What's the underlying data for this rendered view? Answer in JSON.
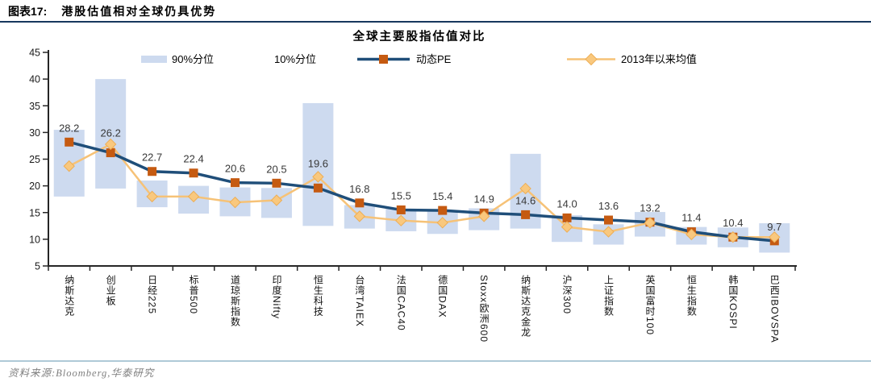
{
  "header": {
    "figure_label": "图表17:",
    "title": "港股估值相对全球仍具优势"
  },
  "source": {
    "line": "资料来源:Bloomberg,华泰研究"
  },
  "chart_data": {
    "type": "bar",
    "subtype": "floating percentile-range bars combined with two marker lines",
    "title": "全球主要股指估值对比",
    "categories": [
      "纳斯达克",
      "创业板",
      "日经225",
      "标普500",
      "道琼斯指数",
      "印度Nifty",
      "恒生科技",
      "台湾TAIEX",
      "法国CAC40",
      "德国DAX",
      "Stoxx欧洲600",
      "纳斯达克金龙",
      "沪深300",
      "上证指数",
      "英国富时100",
      "恒生指数",
      "韩国KOSPI",
      "巴西IBOVSPA"
    ],
    "series": [
      {
        "name": "90%分位",
        "kind": "range-top",
        "values": [
          30.5,
          40.0,
          21.0,
          20.0,
          19.7,
          19.6,
          35.5,
          16.4,
          15.7,
          15.3,
          15.8,
          26.0,
          14.5,
          12.8,
          15.1,
          12.3,
          12.2,
          13.0
        ]
      },
      {
        "name": "10%分位",
        "kind": "range-bottom",
        "values": [
          18.0,
          19.5,
          16.0,
          14.8,
          14.3,
          14.0,
          12.5,
          12.0,
          11.5,
          11.0,
          11.7,
          12.0,
          9.5,
          9.0,
          10.5,
          9.0,
          8.5,
          7.5
        ]
      },
      {
        "name": "动态PE",
        "kind": "line-square",
        "values": [
          28.2,
          26.2,
          22.7,
          22.4,
          20.6,
          20.5,
          19.6,
          16.8,
          15.5,
          15.4,
          14.9,
          14.6,
          14.0,
          13.6,
          13.2,
          11.4,
          10.4,
          9.7
        ],
        "value_labels": [
          "28.2",
          "26.2",
          "22.7",
          "22.4",
          "20.6",
          "20.5",
          "19.6",
          "16.8",
          "15.5",
          "15.4",
          "14.9",
          "14.6",
          "14.0",
          "13.6",
          "13.2",
          "11.4",
          "10.4",
          "9.7"
        ]
      },
      {
        "name": "2013年以来均值",
        "kind": "line-diamond",
        "values": [
          23.7,
          27.8,
          18.0,
          18.0,
          16.9,
          17.3,
          21.7,
          14.3,
          13.5,
          13.1,
          14.3,
          19.5,
          12.3,
          11.4,
          13.1,
          10.9,
          10.4,
          10.4
        ]
      }
    ],
    "ylim": [
      5,
      45
    ],
    "ytick_step": 5,
    "ytick_labels": [
      "45",
      "40",
      "35",
      "30",
      "25",
      "20",
      "15",
      "10",
      "5"
    ],
    "grid": false,
    "legend_position": "top",
    "colors": {
      "band": "#CDDAEF",
      "pe_line": "#1F4E79",
      "pe_marker": "#C55A11",
      "mean_line": "#F6C277",
      "mean_marker": "#F9C87E",
      "mean_marker_edge": "#EDAE56",
      "axis": "#262626",
      "label_text": "#383838",
      "header_rule": "#17375E",
      "source_rule": "#AFC9D7",
      "source_text": "#808080"
    }
  }
}
